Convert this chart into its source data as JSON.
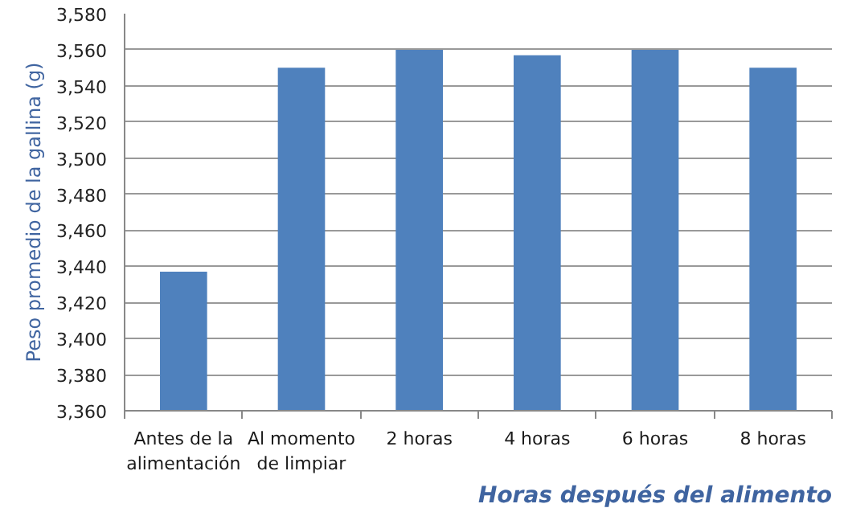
{
  "chart_data": {
    "type": "bar",
    "categories": [
      "Antes de la alimentación",
      "Al momento de limpiar",
      "2 horas",
      "4 horas",
      "6 horas",
      "8 horas"
    ],
    "values": [
      3437,
      3550,
      3560,
      3557,
      3560,
      3550
    ],
    "color": "#4f81bd",
    "ylabel": "Peso promedio de la gallina (g)",
    "xlabel": "Horas después del alimento",
    "ylim": [
      3360,
      3580
    ],
    "yticks": [
      {
        "value": 3360,
        "label": "3,360"
      },
      {
        "value": 3380,
        "label": "3,380"
      },
      {
        "value": 3400,
        "label": "3,400"
      },
      {
        "value": 3420,
        "label": "3,420"
      },
      {
        "value": 3440,
        "label": "3,440"
      },
      {
        "value": 3460,
        "label": "3,460"
      },
      {
        "value": 3480,
        "label": "3,480"
      },
      {
        "value": 3500,
        "label": "3,500"
      },
      {
        "value": 3520,
        "label": "3,520"
      },
      {
        "value": 3540,
        "label": "3,540"
      },
      {
        "value": 3560,
        "label": "3,560"
      },
      {
        "value": 3580,
        "label": "3,580"
      }
    ],
    "grid": "y"
  }
}
